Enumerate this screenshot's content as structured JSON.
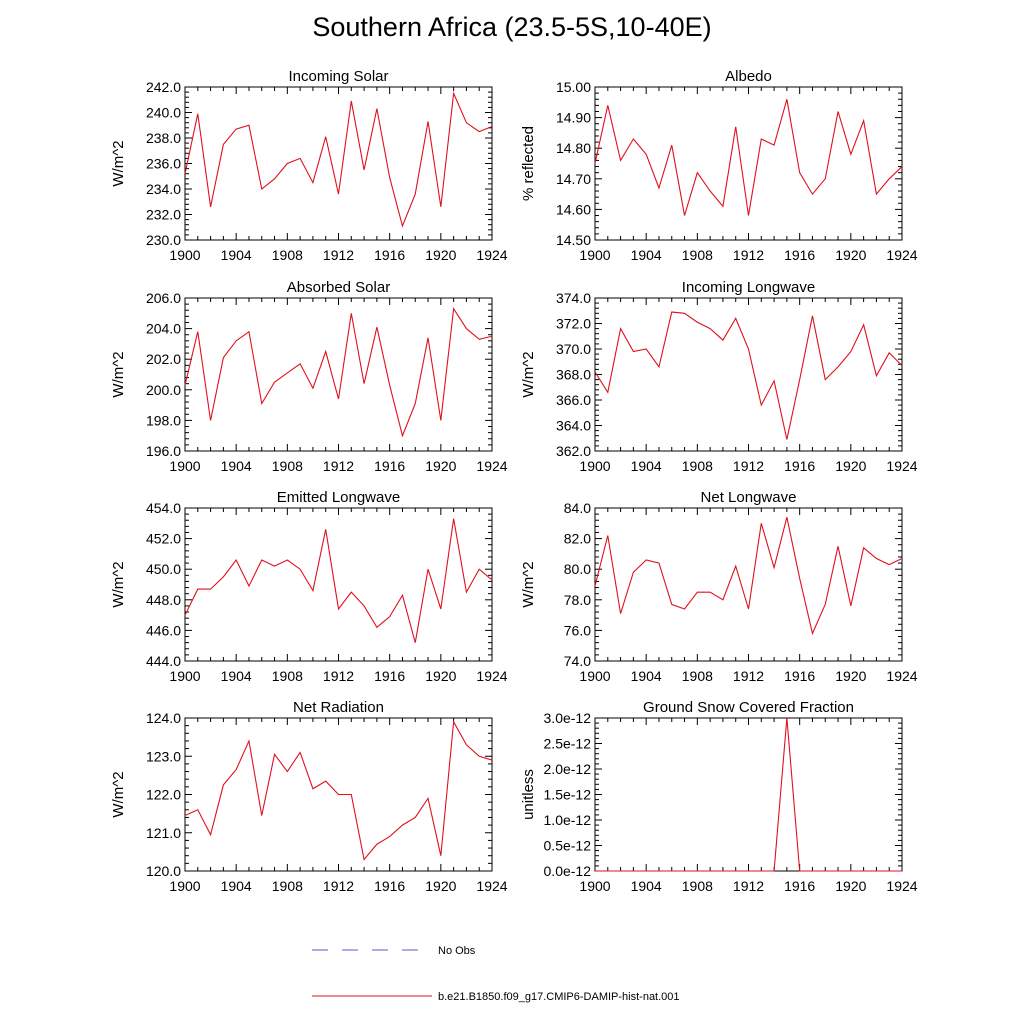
{
  "figure": {
    "title": "Southern Africa (23.5-5S,10-40E)"
  },
  "legend": [
    {
      "label": "No Obs",
      "color": "#5a5ad0",
      "style": "dashed"
    },
    {
      "label": "b.e21.B1850.f09_g17.CMIP6-DAMIP-hist-nat.001",
      "color": "#e0101e",
      "style": "solid"
    }
  ],
  "line_color": "#e0101e",
  "chart_data": [
    {
      "type": "line",
      "title": "Incoming Solar",
      "xlabel": "",
      "ylabel": "W/m^2",
      "xlim": [
        1900,
        1924
      ],
      "ylim": [
        230,
        242
      ],
      "xticks": [
        "1900",
        "1904",
        "1908",
        "1912",
        "1916",
        "1920",
        "1924"
      ],
      "yticks": [
        "230.0",
        "232.0",
        "234.0",
        "236.0",
        "238.0",
        "240.0",
        "242.0"
      ],
      "x": [
        1900,
        1901,
        1902,
        1903,
        1904,
        1905,
        1906,
        1907,
        1908,
        1909,
        1910,
        1911,
        1912,
        1913,
        1914,
        1915,
        1916,
        1917,
        1918,
        1919,
        1920,
        1921,
        1922,
        1923,
        1924
      ],
      "series": [
        {
          "name": "b.e21.B1850.f09_g17.CMIP6-DAMIP-hist-nat.001",
          "values": [
            235.2,
            239.9,
            232.6,
            237.5,
            238.7,
            239.0,
            234.0,
            234.8,
            236.0,
            236.4,
            234.5,
            238.1,
            233.6,
            240.9,
            235.5,
            240.3,
            234.9,
            231.1,
            233.6,
            239.3,
            232.6,
            241.5,
            239.2,
            238.5,
            238.9
          ]
        }
      ]
    },
    {
      "type": "line",
      "title": "Albedo",
      "xlabel": "",
      "ylabel": "% reflected",
      "xlim": [
        1900,
        1924
      ],
      "ylim": [
        14.5,
        15.0
      ],
      "xticks": [
        "1900",
        "1904",
        "1908",
        "1912",
        "1916",
        "1920",
        "1924"
      ],
      "yticks": [
        "14.50",
        "14.60",
        "14.70",
        "14.80",
        "14.90",
        "15.00"
      ],
      "x": [
        1900,
        1901,
        1902,
        1903,
        1904,
        1905,
        1906,
        1907,
        1908,
        1909,
        1910,
        1911,
        1912,
        1913,
        1914,
        1915,
        1916,
        1917,
        1918,
        1919,
        1920,
        1921,
        1922,
        1923,
        1924
      ],
      "series": [
        {
          "name": "b.e21.B1850.f09_g17.CMIP6-DAMIP-hist-nat.001",
          "values": [
            14.75,
            14.94,
            14.76,
            14.83,
            14.78,
            14.67,
            14.81,
            14.58,
            14.72,
            14.66,
            14.61,
            14.87,
            14.58,
            14.83,
            14.81,
            14.96,
            14.72,
            14.65,
            14.7,
            14.92,
            14.78,
            14.89,
            14.65,
            14.7,
            14.74
          ]
        }
      ]
    },
    {
      "type": "line",
      "title": "Absorbed Solar",
      "xlabel": "",
      "ylabel": "W/m^2",
      "xlim": [
        1900,
        1924
      ],
      "ylim": [
        196,
        206
      ],
      "xticks": [
        "1900",
        "1904",
        "1908",
        "1912",
        "1916",
        "1920",
        "1924"
      ],
      "yticks": [
        "196.0",
        "198.0",
        "200.0",
        "202.0",
        "204.0",
        "206.0"
      ],
      "x": [
        1900,
        1901,
        1902,
        1903,
        1904,
        1905,
        1906,
        1907,
        1908,
        1909,
        1910,
        1911,
        1912,
        1913,
        1914,
        1915,
        1916,
        1917,
        1918,
        1919,
        1920,
        1921,
        1922,
        1923,
        1924
      ],
      "series": [
        {
          "name": "b.e21.B1850.f09_g17.CMIP6-DAMIP-hist-nat.001",
          "values": [
            200.3,
            203.8,
            198.0,
            202.1,
            203.2,
            203.8,
            199.1,
            200.5,
            201.1,
            201.7,
            200.1,
            202.5,
            199.4,
            205.0,
            200.4,
            204.1,
            200.3,
            197.0,
            199.1,
            203.4,
            198.0,
            205.3,
            204.0,
            203.3,
            203.5
          ]
        }
      ]
    },
    {
      "type": "line",
      "title": "Incoming Longwave",
      "xlabel": "",
      "ylabel": "W/m^2",
      "xlim": [
        1900,
        1924
      ],
      "ylim": [
        362,
        374
      ],
      "xticks": [
        "1900",
        "1904",
        "1908",
        "1912",
        "1916",
        "1920",
        "1924"
      ],
      "yticks": [
        "362.0",
        "364.0",
        "366.0",
        "368.0",
        "370.0",
        "372.0",
        "374.0"
      ],
      "x": [
        1900,
        1901,
        1902,
        1903,
        1904,
        1905,
        1906,
        1907,
        1908,
        1909,
        1910,
        1911,
        1912,
        1913,
        1914,
        1915,
        1916,
        1917,
        1918,
        1919,
        1920,
        1921,
        1922,
        1923,
        1924
      ],
      "series": [
        {
          "name": "b.e21.B1850.f09_g17.CMIP6-DAMIP-hist-nat.001",
          "values": [
            368.2,
            366.6,
            371.6,
            369.8,
            370.0,
            368.6,
            372.9,
            372.8,
            372.1,
            371.6,
            370.7,
            372.4,
            370.0,
            365.6,
            367.5,
            362.9,
            367.6,
            372.6,
            367.6,
            368.6,
            369.8,
            371.9,
            367.9,
            369.7,
            368.7
          ]
        }
      ]
    },
    {
      "type": "line",
      "title": "Emitted Longwave",
      "xlabel": "",
      "ylabel": "W/m^2",
      "xlim": [
        1900,
        1924
      ],
      "ylim": [
        444,
        454
      ],
      "xticks": [
        "1900",
        "1904",
        "1908",
        "1912",
        "1916",
        "1920",
        "1924"
      ],
      "yticks": [
        "444.0",
        "446.0",
        "448.0",
        "450.0",
        "452.0",
        "454.0"
      ],
      "x": [
        1900,
        1901,
        1902,
        1903,
        1904,
        1905,
        1906,
        1907,
        1908,
        1909,
        1910,
        1911,
        1912,
        1913,
        1914,
        1915,
        1916,
        1917,
        1918,
        1919,
        1920,
        1921,
        1922,
        1923,
        1924
      ],
      "series": [
        {
          "name": "b.e21.B1850.f09_g17.CMIP6-DAMIP-hist-nat.001",
          "values": [
            447.0,
            448.7,
            448.7,
            449.5,
            450.6,
            448.9,
            450.6,
            450.2,
            450.6,
            450.0,
            448.6,
            452.6,
            447.4,
            448.5,
            447.6,
            446.2,
            446.9,
            448.3,
            445.2,
            450.0,
            447.4,
            453.3,
            448.5,
            450.0,
            449.3
          ]
        }
      ]
    },
    {
      "type": "line",
      "title": "Net Longwave",
      "xlabel": "",
      "ylabel": "W/m^2",
      "xlim": [
        1900,
        1924
      ],
      "ylim": [
        74,
        84
      ],
      "xticks": [
        "1900",
        "1904",
        "1908",
        "1912",
        "1916",
        "1920",
        "1924"
      ],
      "yticks": [
        "74.0",
        "76.0",
        "78.0",
        "80.0",
        "82.0",
        "84.0"
      ],
      "x": [
        1900,
        1901,
        1902,
        1903,
        1904,
        1905,
        1906,
        1907,
        1908,
        1909,
        1910,
        1911,
        1912,
        1913,
        1914,
        1915,
        1916,
        1917,
        1918,
        1919,
        1920,
        1921,
        1922,
        1923,
        1924
      ],
      "series": [
        {
          "name": "b.e21.B1850.f09_g17.CMIP6-DAMIP-hist-nat.001",
          "values": [
            78.9,
            82.2,
            77.1,
            79.8,
            80.6,
            80.4,
            77.7,
            77.4,
            78.5,
            78.5,
            78.0,
            80.2,
            77.4,
            83.0,
            80.1,
            83.4,
            79.4,
            75.8,
            77.7,
            81.5,
            77.6,
            81.4,
            80.7,
            80.3,
            80.7
          ]
        }
      ]
    },
    {
      "type": "line",
      "title": "Net Radiation",
      "xlabel": "",
      "ylabel": "W/m^2",
      "xlim": [
        1900,
        1924
      ],
      "ylim": [
        120,
        124
      ],
      "xticks": [
        "1900",
        "1904",
        "1908",
        "1912",
        "1916",
        "1920",
        "1924"
      ],
      "yticks": [
        "120.0",
        "121.0",
        "122.0",
        "123.0",
        "124.0"
      ],
      "x": [
        1900,
        1901,
        1902,
        1903,
        1904,
        1905,
        1906,
        1907,
        1908,
        1909,
        1910,
        1911,
        1912,
        1913,
        1914,
        1915,
        1916,
        1917,
        1918,
        1919,
        1920,
        1921,
        1922,
        1923,
        1924
      ],
      "series": [
        {
          "name": "b.e21.B1850.f09_g17.CMIP6-DAMIP-hist-nat.001",
          "values": [
            121.45,
            121.6,
            120.95,
            122.25,
            122.65,
            123.4,
            121.45,
            123.05,
            122.6,
            123.1,
            122.15,
            122.35,
            122.0,
            122.0,
            120.3,
            120.7,
            120.9,
            121.2,
            121.4,
            121.9,
            120.4,
            123.9,
            123.3,
            123.0,
            122.9
          ]
        }
      ]
    },
    {
      "type": "line",
      "title": "Ground Snow Covered Fraction",
      "xlabel": "",
      "ylabel": "unitless",
      "xlim": [
        1900,
        1924
      ],
      "ylim": [
        0,
        3e-12
      ],
      "xticks": [
        "1900",
        "1904",
        "1908",
        "1912",
        "1916",
        "1920",
        "1924"
      ],
      "yticks": [
        "0.0e-12",
        "0.5e-12",
        "1.0e-12",
        "1.5e-12",
        "2.0e-12",
        "2.5e-12",
        "3.0e-12"
      ],
      "x": [
        1900,
        1901,
        1902,
        1903,
        1904,
        1905,
        1906,
        1907,
        1908,
        1909,
        1910,
        1911,
        1912,
        1913,
        1914,
        1915,
        1916,
        1917,
        1918,
        1919,
        1920,
        1921,
        1922,
        1923,
        1924
      ],
      "series": [
        {
          "name": "b.e21.B1850.f09_g17.CMIP6-DAMIP-hist-nat.001",
          "values": [
            0,
            0,
            0,
            0,
            0,
            0,
            0,
            0,
            0,
            0,
            0,
            0,
            0,
            0,
            0,
            3e-12,
            0,
            0,
            0,
            0,
            0,
            0,
            0,
            0,
            0
          ]
        }
      ]
    }
  ]
}
